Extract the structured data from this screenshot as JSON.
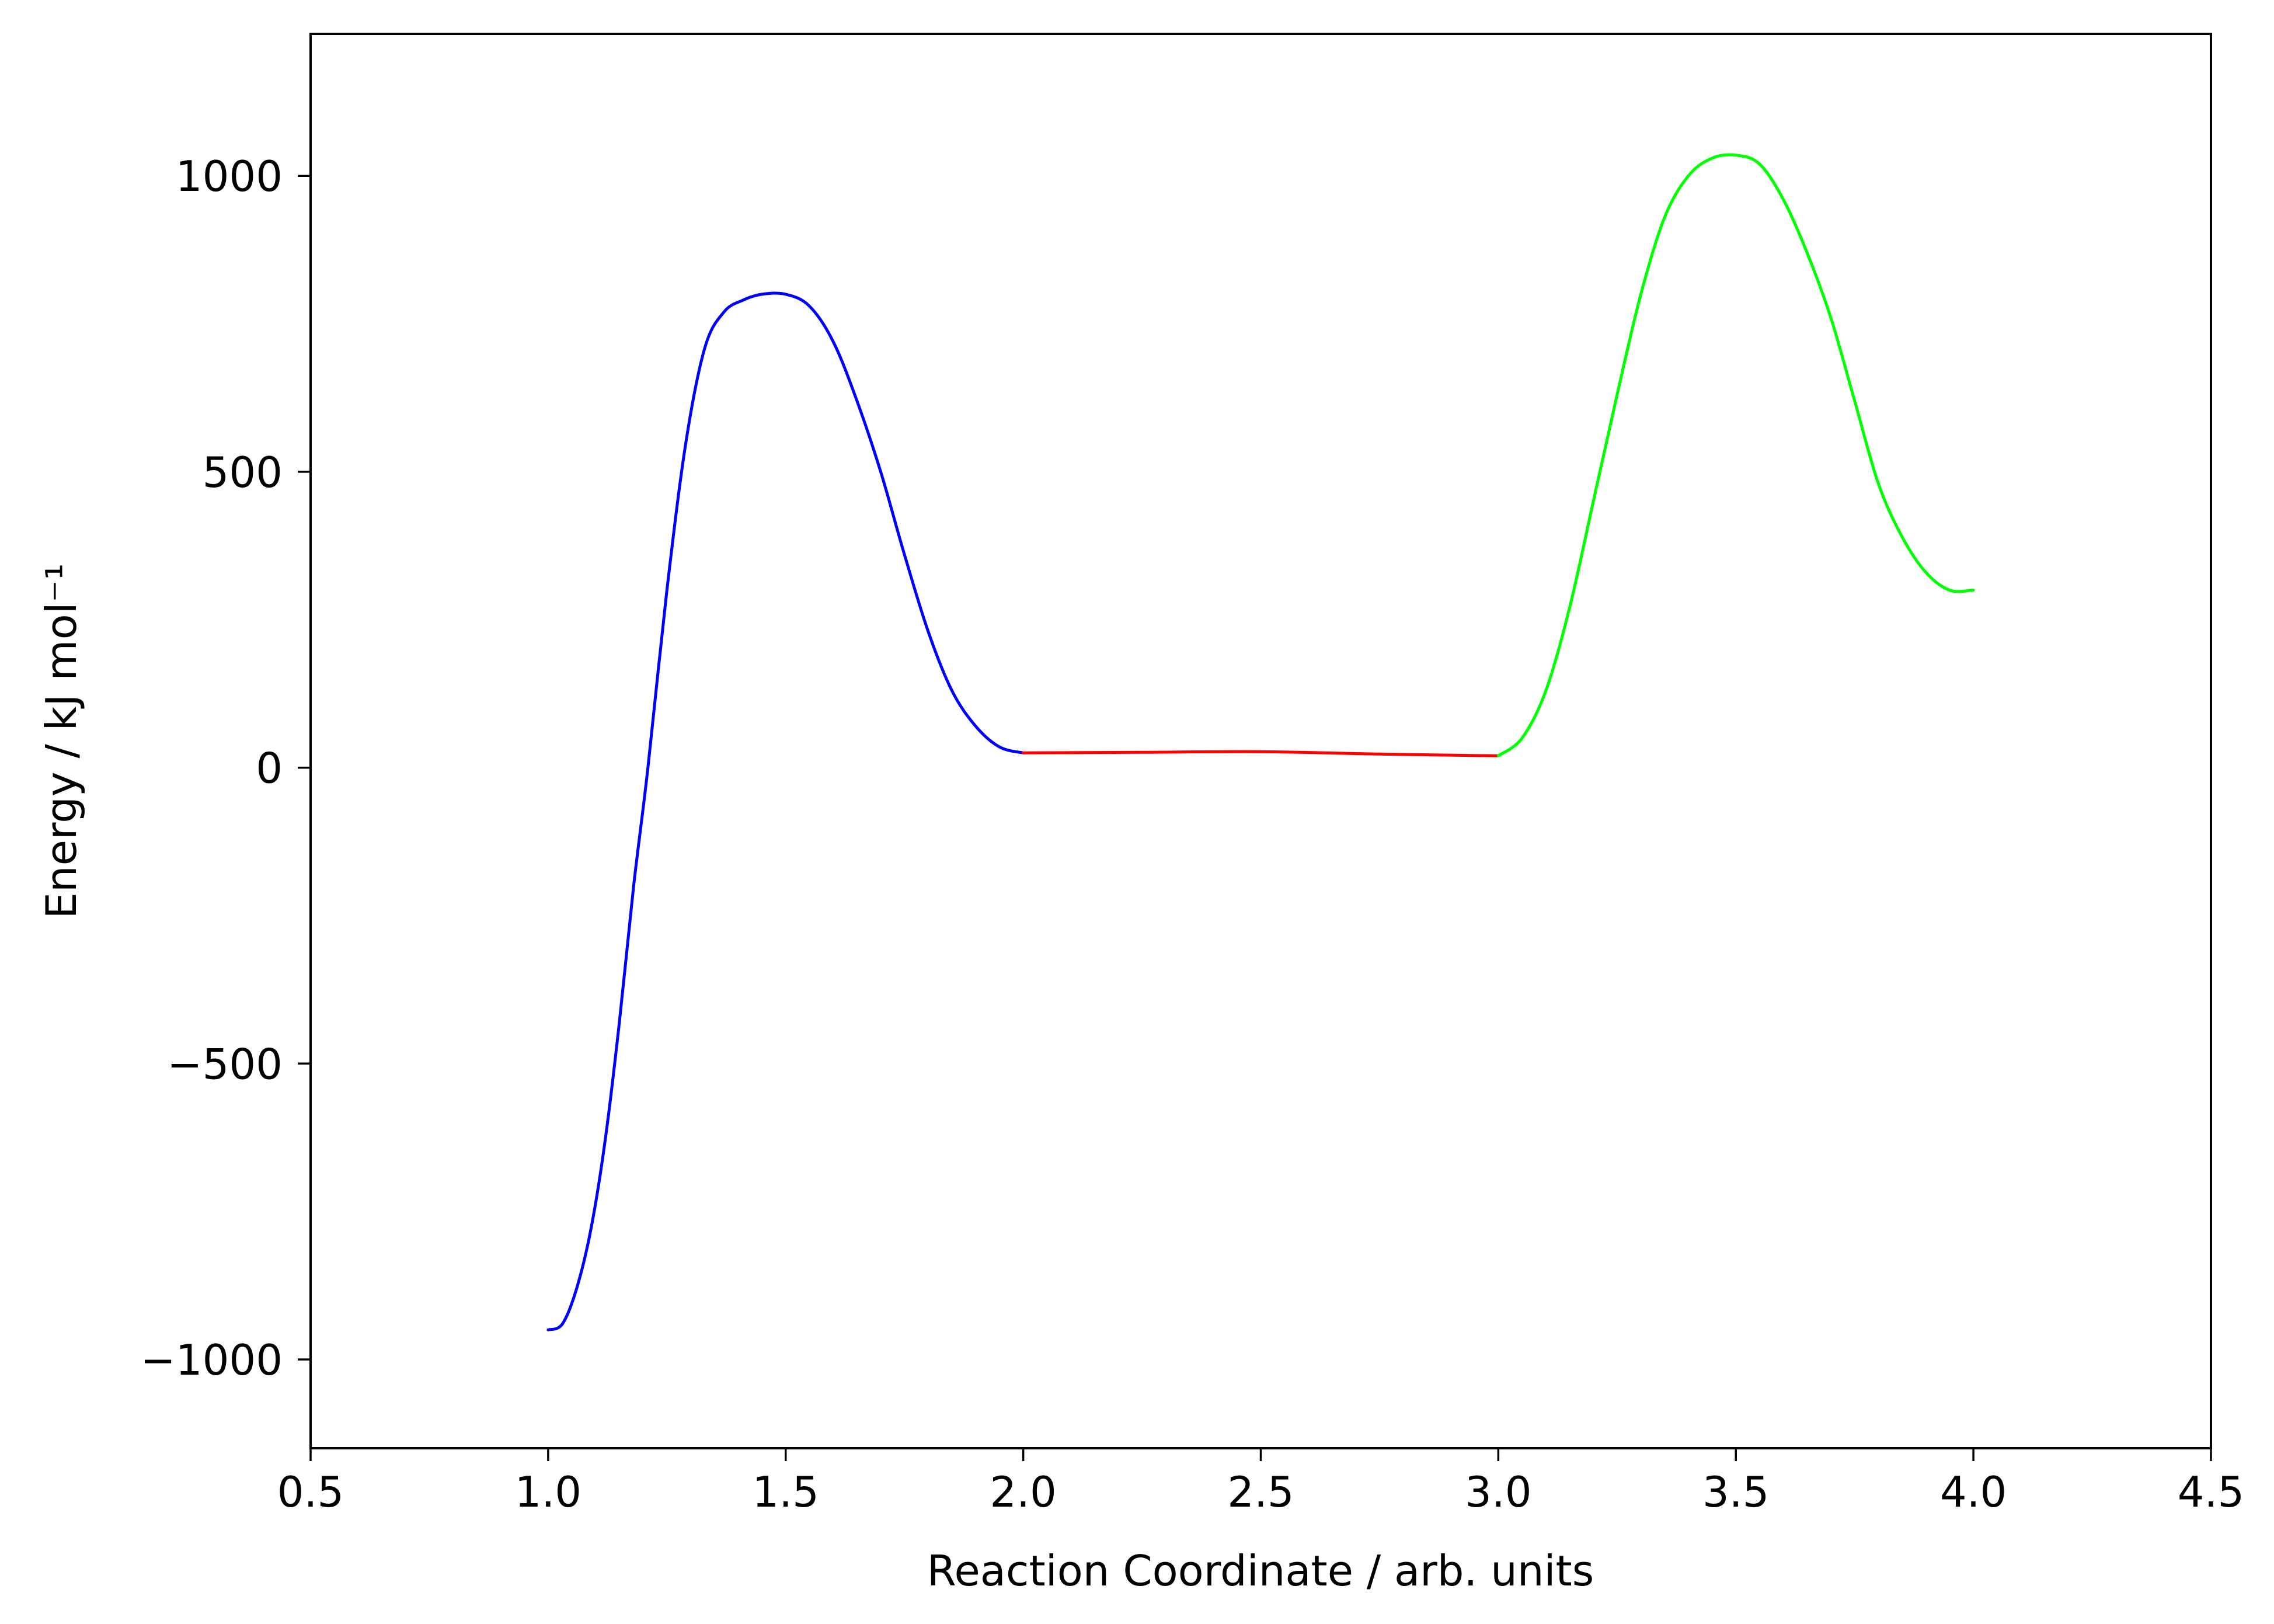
{
  "chart_data": {
    "type": "line",
    "title": "",
    "xlabel": "Reaction Coordinate / arb. units",
    "ylabel": "Energy / kJ mol⁻¹",
    "xlim": [
      0.5,
      4.5
    ],
    "ylim": [
      -1150,
      1240
    ],
    "xticks": [
      0.5,
      1.0,
      1.5,
      2.0,
      2.5,
      3.0,
      3.5,
      4.0,
      4.5
    ],
    "xtick_labels": [
      "0.5",
      "1.0",
      "1.5",
      "2.0",
      "2.5",
      "3.0",
      "3.5",
      "4.0",
      "4.5"
    ],
    "yticks": [
      -1000,
      -500,
      0,
      500,
      1000
    ],
    "ytick_labels": [
      "−1000",
      "−500",
      "0",
      "500",
      "1000"
    ],
    "grid": false,
    "legend": "none",
    "series": [
      {
        "color": "#0000ff",
        "x": [
          1.0,
          1.03,
          1.06,
          1.09,
          1.12,
          1.15,
          1.18,
          1.21,
          1.25,
          1.29,
          1.33,
          1.37,
          1.41,
          1.45,
          1.5,
          1.55,
          1.6,
          1.65,
          1.7,
          1.75,
          1.8,
          1.85,
          1.9,
          1.95,
          2.0
        ],
        "y": [
          -950,
          -940,
          -880,
          -780,
          -630,
          -430,
          -200,
          0,
          300,
          550,
          710,
          770,
          790,
          800,
          800,
          780,
          720,
          620,
          500,
          360,
          230,
          130,
          70,
          35,
          25
        ]
      },
      {
        "color": "#ff0000",
        "x": [
          2.0,
          2.25,
          2.5,
          2.75,
          3.0
        ],
        "y": [
          25,
          26,
          27,
          23,
          20
        ]
      },
      {
        "color": "#00ff00",
        "x": [
          3.0,
          3.05,
          3.1,
          3.15,
          3.2,
          3.25,
          3.3,
          3.35,
          3.4,
          3.45,
          3.5,
          3.55,
          3.6,
          3.65,
          3.7,
          3.75,
          3.8,
          3.85,
          3.9,
          3.95,
          4.0
        ],
        "y": [
          20,
          50,
          130,
          270,
          450,
          630,
          800,
          930,
          1000,
          1030,
          1035,
          1020,
          960,
          870,
          760,
          620,
          480,
          390,
          330,
          300,
          300
        ]
      }
    ]
  }
}
